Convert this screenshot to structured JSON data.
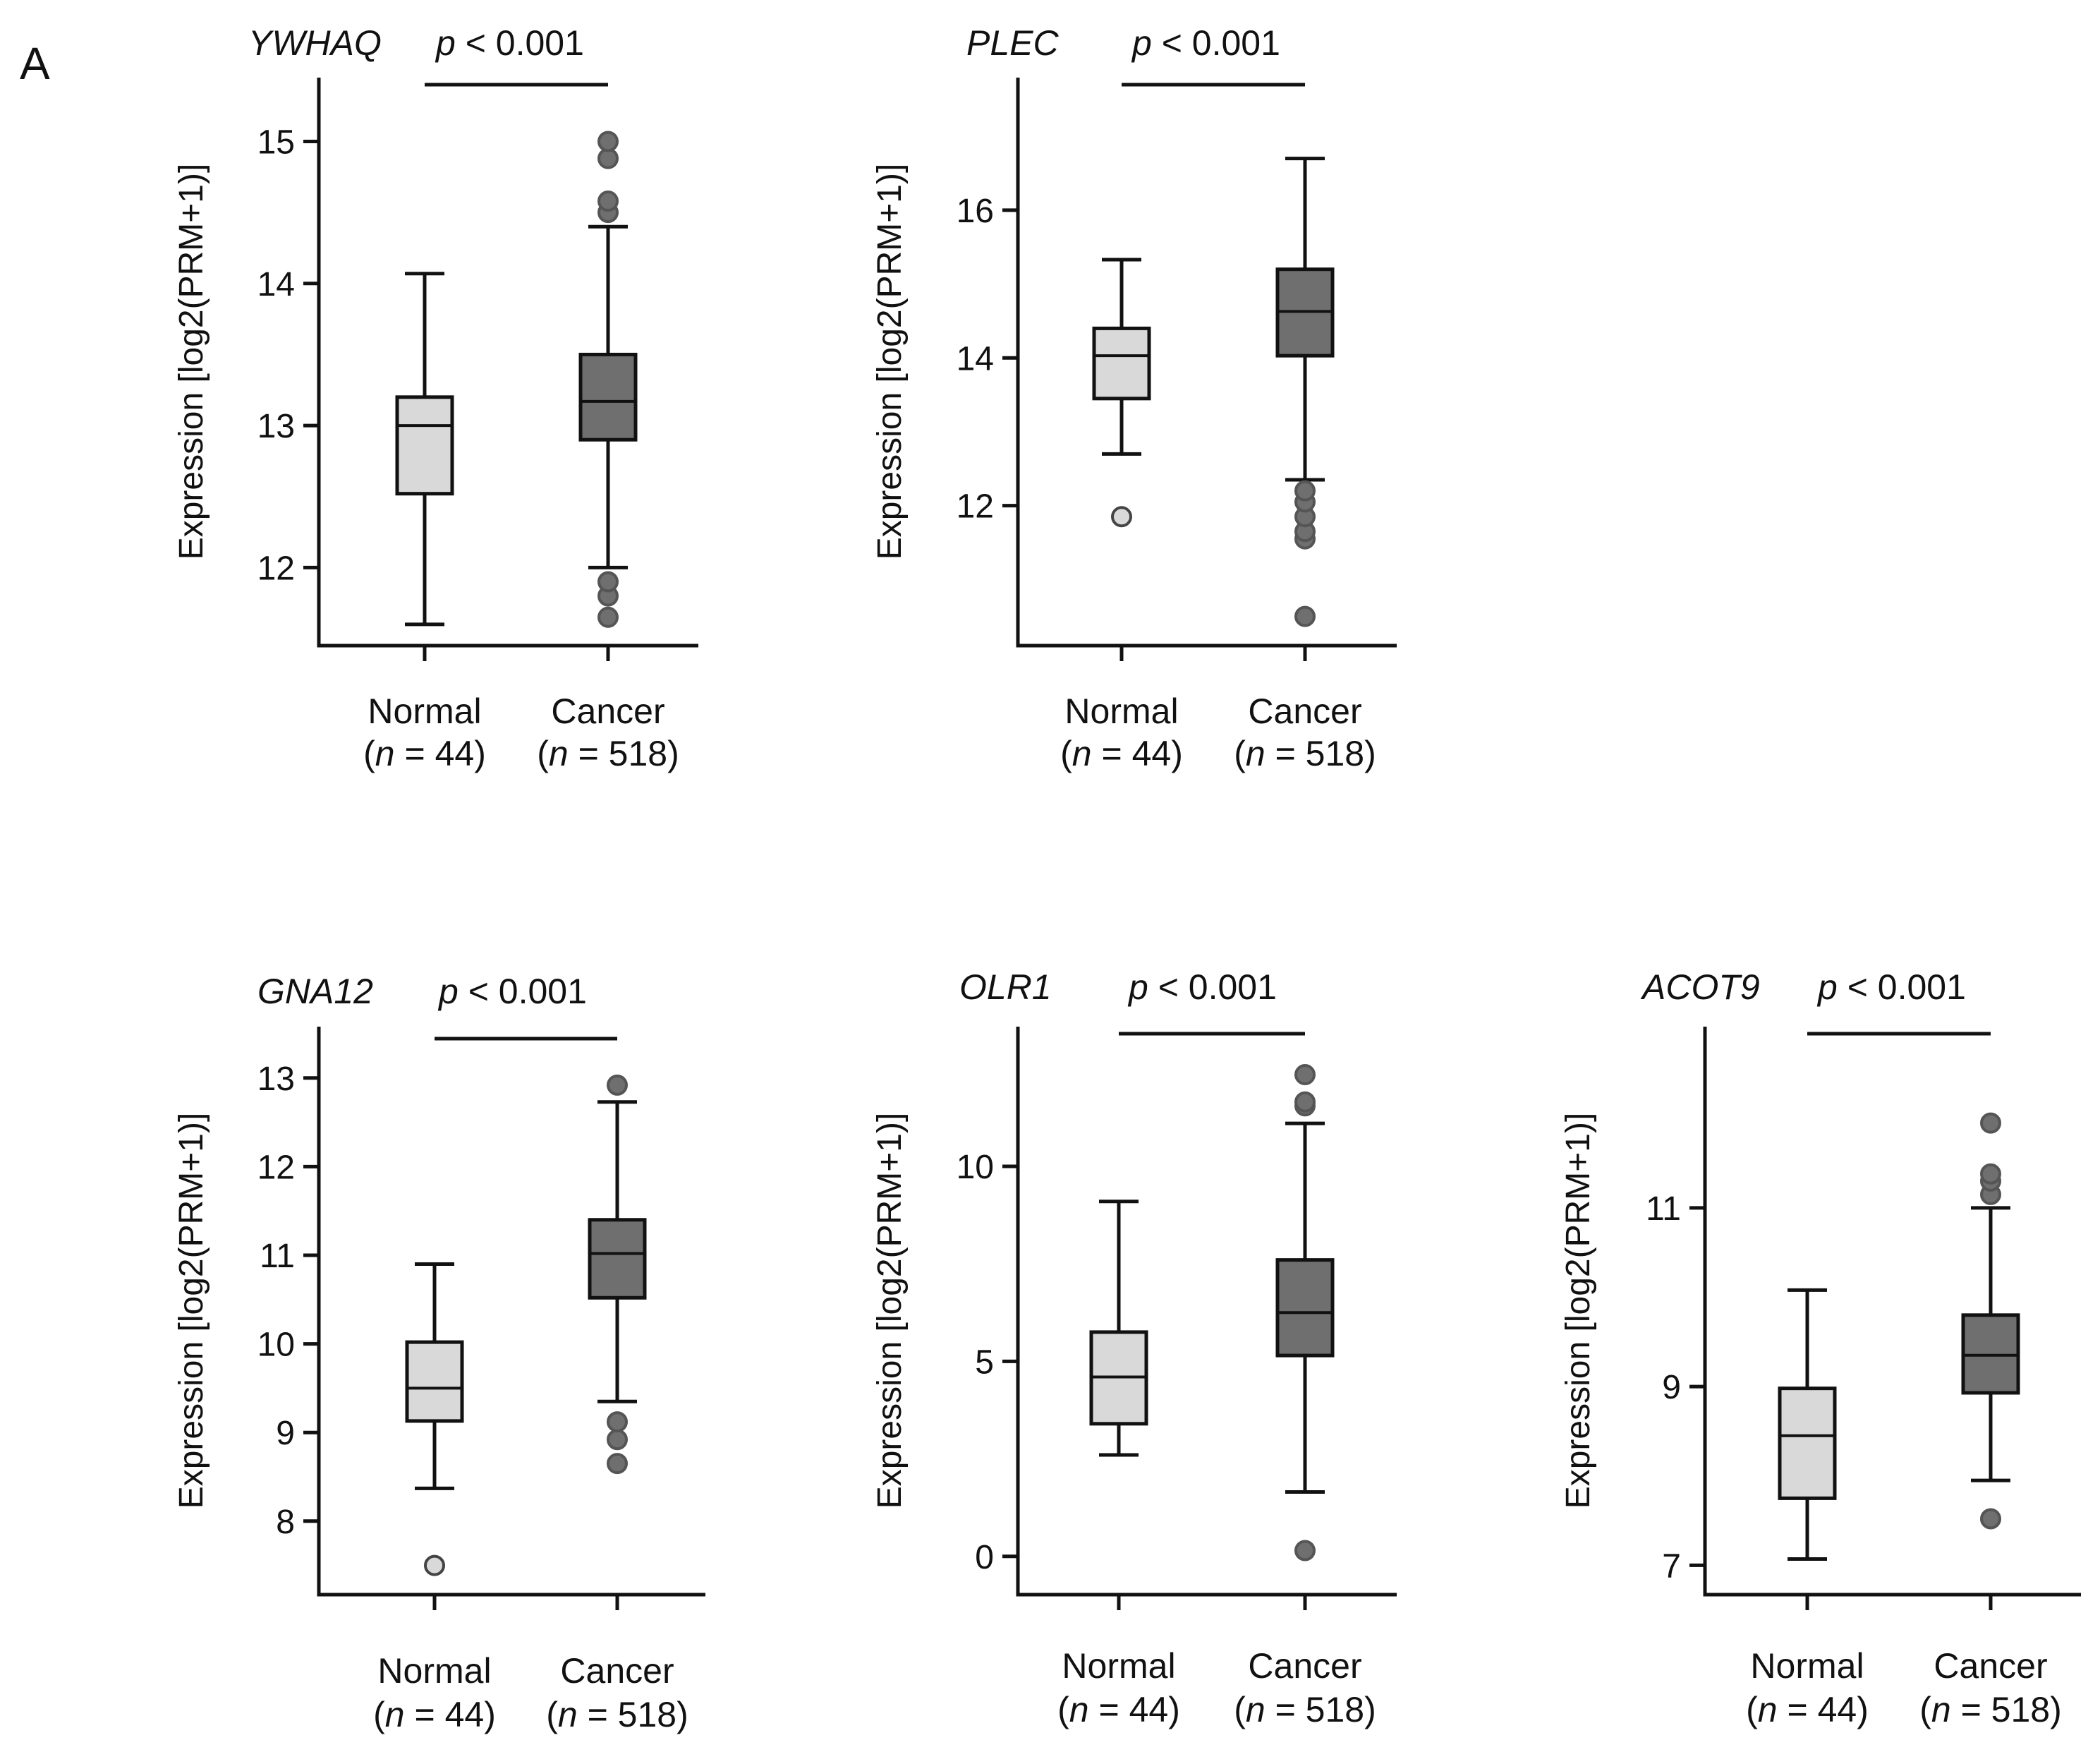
{
  "panel_label": "A",
  "chart_data": [
    {
      "type": "boxplot",
      "gene": "YWHAQ",
      "pvalue": {
        "symbol": "p",
        "text": " < 0.001"
      },
      "ylabel": "Expression [log2(PRM+1)]",
      "ylim": [
        11.5,
        15.4
      ],
      "yticks": [
        12,
        13,
        14,
        15
      ],
      "groups": [
        {
          "name": "Normal",
          "n_label": {
            "open": "(",
            "n": "n",
            "rest": " = 44)"
          },
          "whisker_low": 11.6,
          "q1": 12.52,
          "median": 13.0,
          "q3": 13.2,
          "whisker_high": 14.07,
          "outliers": [],
          "color": "#d9d9d9"
        },
        {
          "name": "Cancer",
          "n_label": {
            "open": "(",
            "n": "n",
            "rest": " = 518)"
          },
          "whisker_low": 12.0,
          "q1": 12.9,
          "median": 13.17,
          "q3": 13.5,
          "whisker_high": 14.4,
          "outliers": [
            11.65,
            11.8,
            11.9,
            14.5,
            14.58,
            14.88,
            15.0
          ],
          "color": "#6f6f6f"
        }
      ]
    },
    {
      "type": "boxplot",
      "gene": "PLEC",
      "pvalue": {
        "symbol": "p",
        "text": " < 0.001"
      },
      "ylabel": "Expression [log2(PRM+1)]",
      "ylim": [
        10.2,
        17.7
      ],
      "yticks": [
        12,
        14,
        16
      ],
      "groups": [
        {
          "name": "Normal",
          "n_label": {
            "open": "(",
            "n": "n",
            "rest": " = 44)"
          },
          "whisker_low": 12.7,
          "q1": 13.45,
          "median": 14.03,
          "q3": 14.4,
          "whisker_high": 15.33,
          "outliers": [
            11.85
          ],
          "color": "#d9d9d9"
        },
        {
          "name": "Cancer",
          "n_label": {
            "open": "(",
            "n": "n",
            "rest": " = 518)"
          },
          "whisker_low": 12.35,
          "q1": 14.03,
          "median": 14.63,
          "q3": 15.2,
          "whisker_high": 16.7,
          "outliers": [
            10.5,
            11.55,
            11.65,
            11.85,
            12.05,
            12.2
          ],
          "color": "#6f6f6f"
        }
      ]
    },
    {
      "type": "boxplot",
      "gene": "GNA12",
      "pvalue": {
        "symbol": "p",
        "text": " < 0.001"
      },
      "ylabel": "Expression [log2(PRM+1)]",
      "ylim": [
        7.25,
        13.5
      ],
      "yticks": [
        8,
        9,
        10,
        11,
        12,
        13
      ],
      "groups": [
        {
          "name": "Normal",
          "n_label": {
            "open": "(",
            "n": "n",
            "rest": " = 44)"
          },
          "whisker_low": 8.37,
          "q1": 9.13,
          "median": 9.5,
          "q3": 10.02,
          "whisker_high": 10.9,
          "outliers": [
            7.5
          ],
          "color": "#d9d9d9"
        },
        {
          "name": "Cancer",
          "n_label": {
            "open": "(",
            "n": "n",
            "rest": " = 518)"
          },
          "whisker_low": 9.35,
          "q1": 10.52,
          "median": 11.02,
          "q3": 11.4,
          "whisker_high": 12.73,
          "outliers": [
            8.65,
            8.92,
            9.12,
            12.92
          ],
          "color": "#6f6f6f"
        }
      ]
    },
    {
      "type": "boxplot",
      "gene": "OLR1",
      "pvalue": {
        "symbol": "p",
        "text": " < 0.001"
      },
      "ylabel": "Expression [log2(PRM+1)]",
      "ylim": [
        -0.8,
        13.4
      ],
      "yticks": [
        0,
        5,
        10
      ],
      "groups": [
        {
          "name": "Normal",
          "n_label": {
            "open": "(",
            "n": "n",
            "rest": " = 44)"
          },
          "whisker_low": 2.6,
          "q1": 3.4,
          "median": 4.6,
          "q3": 5.75,
          "whisker_high": 9.1,
          "outliers": [],
          "color": "#d9d9d9"
        },
        {
          "name": "Cancer",
          "n_label": {
            "open": "(",
            "n": "n",
            "rest": " = 518)"
          },
          "whisker_low": 1.65,
          "q1": 5.15,
          "median": 6.25,
          "q3": 7.6,
          "whisker_high": 11.1,
          "outliers": [
            0.15,
            11.55,
            11.65,
            12.35
          ],
          "color": "#6f6f6f"
        }
      ]
    },
    {
      "type": "boxplot",
      "gene": "ACOT9",
      "pvalue": {
        "symbol": "p",
        "text": " < 0.001"
      },
      "ylabel": "Expression [log2(PRM+1)]",
      "ylim": [
        6.75,
        12.95
      ],
      "yticks": [
        7,
        9,
        11
      ],
      "groups": [
        {
          "name": "Normal",
          "n_label": {
            "open": "(",
            "n": "n",
            "rest": " = 44)"
          },
          "whisker_low": 7.07,
          "q1": 7.75,
          "median": 8.45,
          "q3": 8.98,
          "whisker_high": 10.08,
          "outliers": [],
          "color": "#d9d9d9"
        },
        {
          "name": "Cancer",
          "n_label": {
            "open": "(",
            "n": "n",
            "rest": " = 518)"
          },
          "whisker_low": 7.95,
          "q1": 8.93,
          "median": 9.35,
          "q3": 9.8,
          "whisker_high": 11.0,
          "outliers": [
            7.52,
            11.15,
            11.3,
            11.38,
            11.95
          ],
          "color": "#6f6f6f"
        }
      ]
    }
  ]
}
